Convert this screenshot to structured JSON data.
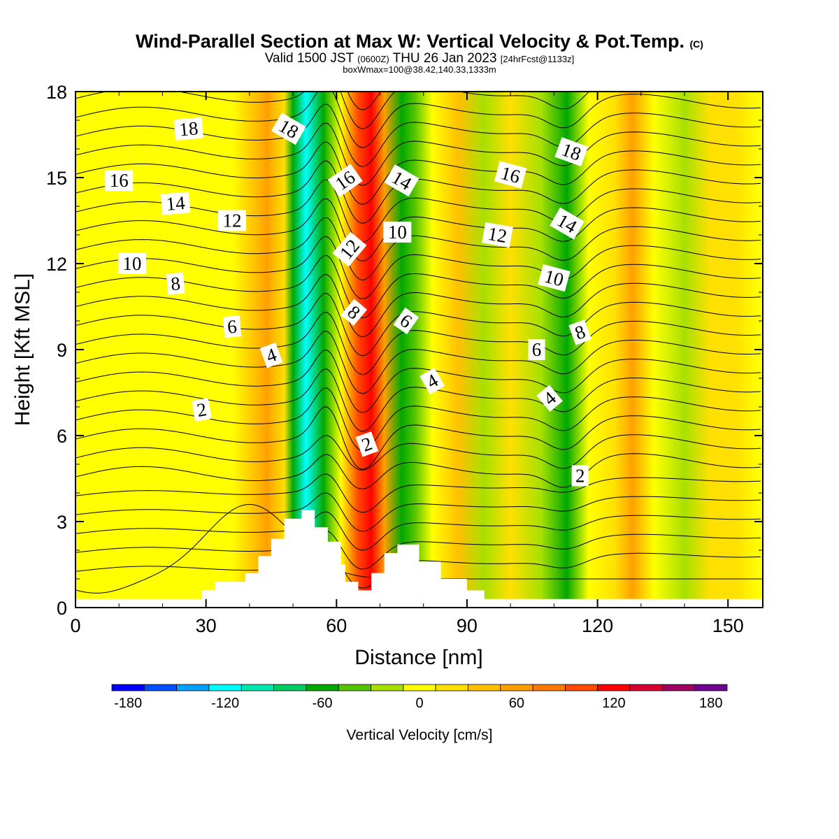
{
  "titles": {
    "main": "Wind-Parallel Section at Max W: Vertical Velocity & Pot.Temp.",
    "copyright": "(C)",
    "valid_a": "Valid 1500 JST ",
    "valid_b": "(0600Z)",
    "valid_c": " THU 26 Jan 2023 ",
    "valid_d": "[24hrFcst@1133z]",
    "box": "boxWmax=100@38.42,140.33,1333m"
  },
  "chart_data": {
    "type": "heatmap",
    "xlabel": "Distance [nm]",
    "ylabel": "Height [Kft MSL]",
    "xlim": [
      0,
      158
    ],
    "ylim": [
      0,
      18
    ],
    "x_ticks": [
      "0",
      "30",
      "60",
      "90",
      "120",
      "150"
    ],
    "y_ticks": [
      "0",
      "3",
      "6",
      "9",
      "12",
      "15",
      "18"
    ],
    "colorbar": {
      "title": "Vertical Velocity [cm/s]",
      "levels": [
        -190,
        -170,
        -150,
        -130,
        -110,
        -90,
        -70,
        -50,
        -30,
        -10,
        10,
        30,
        50,
        70,
        90,
        110,
        130,
        150,
        170,
        190
      ],
      "colors": [
        "#0000ff",
        "#0050ff",
        "#00a0ff",
        "#00ffff",
        "#00e8b0",
        "#00cc66",
        "#00a800",
        "#55c400",
        "#a8e000",
        "#ffff00",
        "#ffe000",
        "#ffc000",
        "#ffa000",
        "#ff7800",
        "#ff4800",
        "#ff0000",
        "#d80030",
        "#a00060",
        "#700090"
      ],
      "tick_labels": [
        "-180",
        "-120",
        "-60",
        "0",
        "60",
        "120",
        "180"
      ],
      "tick_values": [
        -180,
        -120,
        -60,
        0,
        60,
        120,
        180
      ]
    },
    "velocity_bands": [
      {
        "x": 3,
        "w": -5
      },
      {
        "x": 12,
        "w": -8
      },
      {
        "x": 22,
        "w": 2
      },
      {
        "x": 30,
        "w": -10
      },
      {
        "x": 36,
        "w": 8
      },
      {
        "x": 44,
        "w": 50
      },
      {
        "x": 48,
        "w": 25
      },
      {
        "x": 50,
        "w": -70
      },
      {
        "x": 53,
        "w": -120
      },
      {
        "x": 57,
        "w": -60
      },
      {
        "x": 61,
        "w": -10
      },
      {
        "x": 65,
        "w": 90
      },
      {
        "x": 68,
        "w": 120
      },
      {
        "x": 71,
        "w": 60
      },
      {
        "x": 75,
        "w": -70
      },
      {
        "x": 78,
        "w": -50
      },
      {
        "x": 82,
        "w": 5
      },
      {
        "x": 88,
        "w": 30
      },
      {
        "x": 94,
        "w": -20
      },
      {
        "x": 100,
        "w": 10
      },
      {
        "x": 107,
        "w": -20
      },
      {
        "x": 113,
        "w": -55
      },
      {
        "x": 118,
        "w": -10
      },
      {
        "x": 124,
        "w": 20
      },
      {
        "x": 128,
        "w": 50
      },
      {
        "x": 133,
        "w": 5
      },
      {
        "x": 140,
        "w": -20
      },
      {
        "x": 146,
        "w": 10
      },
      {
        "x": 152,
        "w": 15
      },
      {
        "x": 157,
        "w": -5
      }
    ],
    "terrain": [
      [
        0,
        0.3
      ],
      [
        29,
        0.3
      ],
      [
        29,
        0.6
      ],
      [
        32,
        0.6
      ],
      [
        32,
        0.9
      ],
      [
        39,
        0.9
      ],
      [
        39,
        1.2
      ],
      [
        42,
        1.2
      ],
      [
        42,
        1.8
      ],
      [
        45,
        1.8
      ],
      [
        45,
        2.4
      ],
      [
        48,
        2.4
      ],
      [
        48,
        3.1
      ],
      [
        52,
        3.1
      ],
      [
        52,
        3.4
      ],
      [
        55,
        3.4
      ],
      [
        55,
        2.8
      ],
      [
        58,
        2.8
      ],
      [
        58,
        2.3
      ],
      [
        61,
        2.3
      ],
      [
        61,
        1.5
      ],
      [
        62,
        1.5
      ],
      [
        62,
        0.9
      ],
      [
        65,
        0.9
      ],
      [
        65,
        0.6
      ],
      [
        68,
        0.6
      ],
      [
        68,
        1.2
      ],
      [
        71,
        1.2
      ],
      [
        71,
        1.9
      ],
      [
        74,
        1.9
      ],
      [
        74,
        2.2
      ],
      [
        79,
        2.2
      ],
      [
        79,
        1.6
      ],
      [
        84,
        1.6
      ],
      [
        84,
        1.0
      ],
      [
        90,
        1.0
      ],
      [
        90,
        0.6
      ],
      [
        94,
        0.6
      ],
      [
        94,
        0.3
      ],
      [
        158,
        0.3
      ]
    ],
    "pot_temp_label_values": [
      "2",
      "4",
      "6",
      "8",
      "10",
      "12",
      "14",
      "16",
      "18"
    ],
    "contour_labels": [
      {
        "text": "18",
        "x": 26,
        "y": 16.7,
        "rot": -5
      },
      {
        "text": "16",
        "x": 10,
        "y": 14.9,
        "rot": 0
      },
      {
        "text": "14",
        "x": 23,
        "y": 14.1,
        "rot": -5
      },
      {
        "text": "12",
        "x": 36,
        "y": 13.5,
        "rot": 0
      },
      {
        "text": "10",
        "x": 13,
        "y": 12.0,
        "rot": 0
      },
      {
        "text": "8",
        "x": 23,
        "y": 11.3,
        "rot": -5
      },
      {
        "text": "6",
        "x": 36,
        "y": 9.8,
        "rot": -5
      },
      {
        "text": "4",
        "x": 45,
        "y": 8.8,
        "rot": -20
      },
      {
        "text": "2",
        "x": 29,
        "y": 6.9,
        "rot": -10
      },
      {
        "text": "18",
        "x": 49,
        "y": 16.7,
        "rot": 30
      },
      {
        "text": "16",
        "x": 62,
        "y": 14.9,
        "rot": -35
      },
      {
        "text": "12",
        "x": 63,
        "y": 12.5,
        "rot": -50
      },
      {
        "text": "8",
        "x": 64,
        "y": 10.3,
        "rot": 40
      },
      {
        "text": "2",
        "x": 67,
        "y": 5.7,
        "rot": -20
      },
      {
        "text": "14",
        "x": 75,
        "y": 14.9,
        "rot": 30
      },
      {
        "text": "10",
        "x": 74,
        "y": 13.1,
        "rot": 0
      },
      {
        "text": "6",
        "x": 76,
        "y": 10.0,
        "rot": 35
      },
      {
        "text": "4",
        "x": 82,
        "y": 7.9,
        "rot": -30
      },
      {
        "text": "16",
        "x": 100,
        "y": 15.1,
        "rot": 15
      },
      {
        "text": "12",
        "x": 97,
        "y": 13.0,
        "rot": 10
      },
      {
        "text": "18",
        "x": 114,
        "y": 15.9,
        "rot": 20
      },
      {
        "text": "14",
        "x": 113,
        "y": 13.4,
        "rot": 30
      },
      {
        "text": "10",
        "x": 110,
        "y": 11.5,
        "rot": 15
      },
      {
        "text": "8",
        "x": 116,
        "y": 9.6,
        "rot": -20
      },
      {
        "text": "6",
        "x": 106,
        "y": 9.0,
        "rot": 0
      },
      {
        "text": "4",
        "x": 109,
        "y": 7.3,
        "rot": -40
      },
      {
        "text": "2",
        "x": 116,
        "y": 4.6,
        "rot": 0
      }
    ]
  }
}
